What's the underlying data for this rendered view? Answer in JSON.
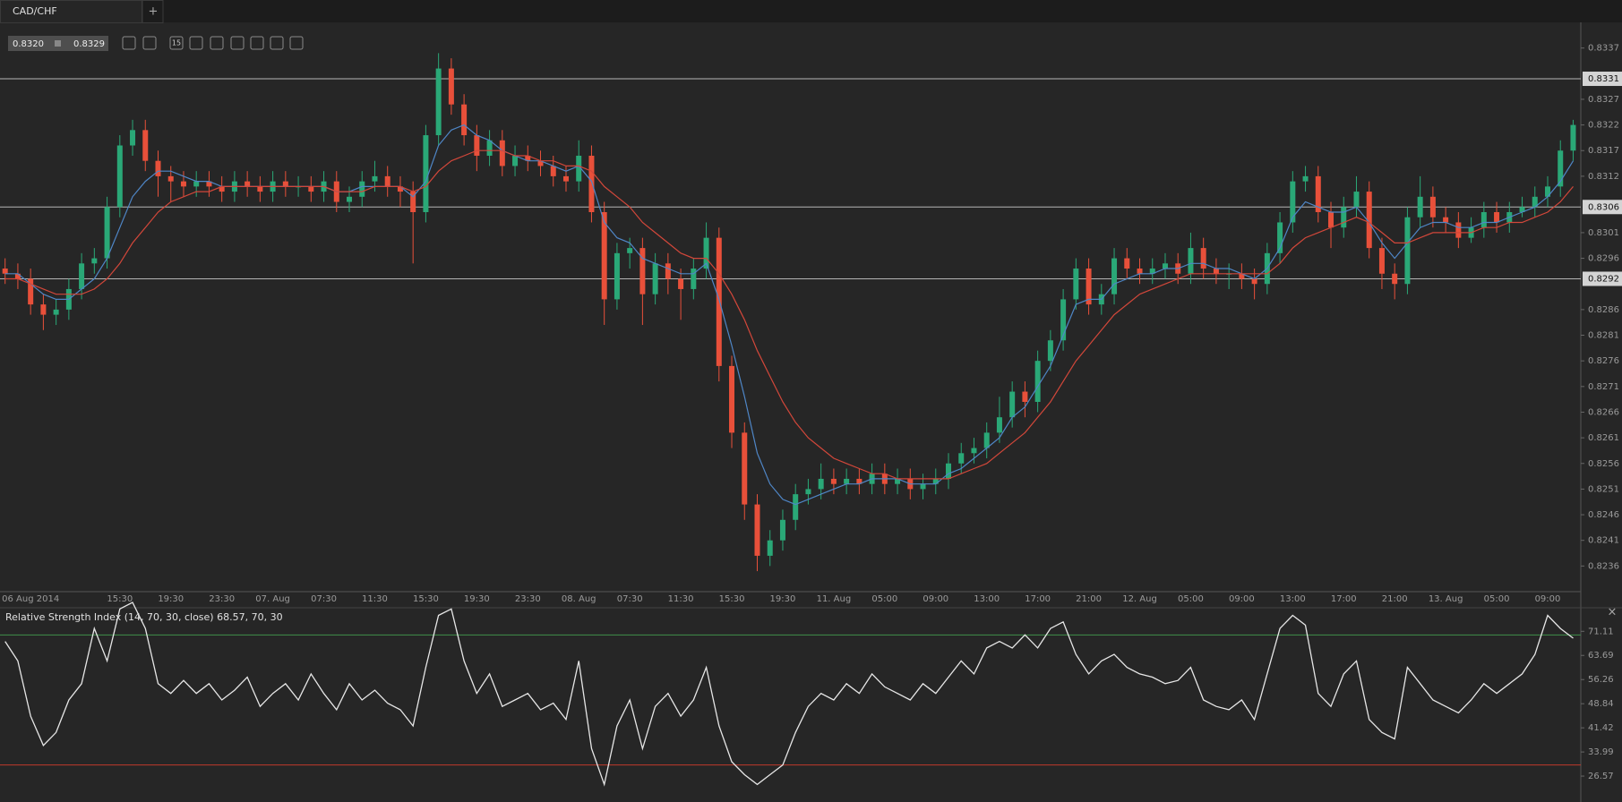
{
  "ui": {
    "tab": "CAD/CHF",
    "new_tab": "+",
    "bid": "0.8320",
    "ask": "0.8329",
    "timeframe": "15",
    "close": "×"
  },
  "chart_data": [
    {
      "type": "candlestick",
      "title": "CAD/CHF",
      "categories": [
        null,
        null,
        "06 Aug 2014",
        null,
        null,
        null,
        null,
        null,
        null,
        "15:30",
        null,
        null,
        null,
        "19:30",
        null,
        null,
        null,
        "23:30",
        null,
        null,
        null,
        "07. Aug",
        null,
        null,
        null,
        "07:30",
        null,
        null,
        null,
        "11:30",
        null,
        null,
        null,
        "15:30",
        null,
        null,
        null,
        "19:30",
        null,
        null,
        null,
        "23:30",
        null,
        null,
        null,
        "08. Aug",
        null,
        null,
        null,
        "07:30",
        null,
        null,
        null,
        "11:30",
        null,
        null,
        null,
        "15:30",
        null,
        null,
        null,
        "19:30",
        null,
        null,
        null,
        "11. Aug",
        null,
        null,
        null,
        "05:00",
        null,
        null,
        null,
        "09:00",
        null,
        null,
        null,
        "13:00",
        null,
        null,
        null,
        "17:00",
        null,
        null,
        null,
        "21:00",
        null,
        null,
        null,
        "12. Aug",
        null,
        null,
        null,
        "05:00",
        null,
        null,
        null,
        "09:00",
        null,
        null,
        null,
        "13:00",
        null,
        null,
        null,
        "17:00",
        null,
        null,
        null,
        "21:00",
        null,
        null,
        null,
        "13. Aug",
        null,
        null,
        null,
        "05:00",
        null,
        null,
        null,
        "09:00",
        null,
        null
      ],
      "open": [
        0.8294,
        0.8293,
        0.8292,
        0.8287,
        0.8285,
        0.8286,
        0.829,
        0.8295,
        0.8296,
        0.8306,
        0.8318,
        0.8321,
        0.8315,
        0.8312,
        0.8311,
        0.831,
        0.8311,
        0.831,
        0.8309,
        0.8311,
        0.831,
        0.8309,
        0.8311,
        0.831,
        0.831,
        0.8309,
        0.8311,
        0.8307,
        0.8308,
        0.8311,
        0.8312,
        0.831,
        0.8309,
        0.8305,
        0.832,
        0.8333,
        0.8326,
        0.832,
        0.8316,
        0.8319,
        0.8314,
        0.8316,
        0.8315,
        0.8314,
        0.8312,
        0.8311,
        0.8316,
        0.8305,
        0.8288,
        0.8297,
        0.8298,
        0.8289,
        0.8295,
        0.8292,
        0.829,
        0.8294,
        0.83,
        0.8275,
        0.8262,
        0.8248,
        0.8238,
        0.8241,
        0.8245,
        0.825,
        0.8251,
        0.8253,
        0.8252,
        0.8253,
        0.8252,
        0.8254,
        0.8252,
        0.8253,
        0.8251,
        0.8252,
        0.8253,
        0.8256,
        0.8258,
        0.8259,
        0.8262,
        0.8265,
        0.827,
        0.8268,
        0.8276,
        0.828,
        0.8288,
        0.8294,
        0.8287,
        0.8289,
        0.8296,
        0.8294,
        0.8293,
        0.8294,
        0.8295,
        0.8293,
        0.8298,
        0.8294,
        0.8293,
        0.8293,
        0.8292,
        0.8291,
        0.8297,
        0.8303,
        0.8311,
        0.8312,
        0.8305,
        0.8302,
        0.8306,
        0.8309,
        0.8298,
        0.8293,
        0.8291,
        0.8304,
        0.8308,
        0.8304,
        0.8303,
        0.83,
        0.8302,
        0.8305,
        0.8303,
        0.8305,
        0.8306,
        0.8308,
        0.831,
        0.8317
      ],
      "high": [
        0.8296,
        0.8295,
        0.8294,
        0.8289,
        0.8288,
        0.8292,
        0.8297,
        0.8298,
        0.8308,
        0.832,
        0.8323,
        0.8323,
        0.8317,
        0.8314,
        0.8313,
        0.8313,
        0.8313,
        0.8312,
        0.8313,
        0.8313,
        0.8312,
        0.8313,
        0.8313,
        0.8312,
        0.8312,
        0.8313,
        0.8313,
        0.831,
        0.8313,
        0.8315,
        0.8314,
        0.8312,
        0.8311,
        0.8322,
        0.8336,
        0.8335,
        0.8328,
        0.8322,
        0.8321,
        0.8321,
        0.8318,
        0.8318,
        0.8317,
        0.8316,
        0.8314,
        0.8319,
        0.8318,
        0.8307,
        0.8299,
        0.83,
        0.83,
        0.8297,
        0.8297,
        0.8294,
        0.8296,
        0.8303,
        0.8302,
        0.8277,
        0.8264,
        0.825,
        0.8243,
        0.8247,
        0.8252,
        0.8253,
        0.8256,
        0.8255,
        0.8255,
        0.8255,
        0.8256,
        0.8256,
        0.8255,
        0.8255,
        0.8254,
        0.8255,
        0.8258,
        0.826,
        0.8261,
        0.8264,
        0.8269,
        0.8272,
        0.8272,
        0.8278,
        0.8282,
        0.829,
        0.8296,
        0.8296,
        0.8291,
        0.8298,
        0.8298,
        0.8296,
        0.8296,
        0.8297,
        0.8297,
        0.8301,
        0.83,
        0.8296,
        0.8295,
        0.8295,
        0.8294,
        0.8299,
        0.8305,
        0.8313,
        0.8314,
        0.8314,
        0.8307,
        0.8308,
        0.8312,
        0.8311,
        0.83,
        0.8295,
        0.8306,
        0.8312,
        0.831,
        0.8306,
        0.8305,
        0.8304,
        0.8307,
        0.8307,
        0.8307,
        0.8308,
        0.831,
        0.8312,
        0.8319,
        0.8323
      ],
      "low": [
        0.8291,
        0.829,
        0.8285,
        0.8282,
        0.8283,
        0.8284,
        0.8288,
        0.8293,
        0.8294,
        0.8304,
        0.8316,
        0.8313,
        0.8308,
        0.8307,
        0.8308,
        0.8308,
        0.8308,
        0.8307,
        0.8307,
        0.8308,
        0.8307,
        0.8307,
        0.8308,
        0.8308,
        0.8307,
        0.8307,
        0.8305,
        0.8305,
        0.8306,
        0.8309,
        0.8308,
        0.8306,
        0.8295,
        0.8303,
        0.8318,
        0.8324,
        0.8318,
        0.8313,
        0.8314,
        0.8312,
        0.8312,
        0.8313,
        0.8312,
        0.831,
        0.8309,
        0.8309,
        0.8303,
        0.8283,
        0.8286,
        0.8294,
        0.8283,
        0.8287,
        0.8289,
        0.8284,
        0.8288,
        0.8292,
        0.8272,
        0.8259,
        0.8245,
        0.8235,
        0.8236,
        0.8239,
        0.8243,
        0.8248,
        0.8249,
        0.825,
        0.825,
        0.825,
        0.825,
        0.825,
        0.825,
        0.8249,
        0.8249,
        0.825,
        0.8251,
        0.8254,
        0.8256,
        0.8257,
        0.826,
        0.8263,
        0.8265,
        0.8266,
        0.8274,
        0.8278,
        0.8286,
        0.8285,
        0.8285,
        0.8287,
        0.8292,
        0.8291,
        0.8291,
        0.8292,
        0.8291,
        0.8291,
        0.8292,
        0.8291,
        0.829,
        0.829,
        0.8288,
        0.8289,
        0.8295,
        0.8301,
        0.8309,
        0.8303,
        0.8298,
        0.83,
        0.8304,
        0.8296,
        0.829,
        0.8288,
        0.8289,
        0.8302,
        0.8302,
        0.8301,
        0.8298,
        0.8299,
        0.83,
        0.8301,
        0.8301,
        0.8304,
        0.8304,
        0.8306,
        0.8308,
        0.8315
      ],
      "close": [
        0.8293,
        0.8292,
        0.8287,
        0.8285,
        0.8286,
        0.829,
        0.8295,
        0.8296,
        0.8306,
        0.8318,
        0.8321,
        0.8315,
        0.8312,
        0.8311,
        0.831,
        0.8311,
        0.831,
        0.8309,
        0.8311,
        0.831,
        0.8309,
        0.8311,
        0.831,
        0.831,
        0.8309,
        0.8311,
        0.8307,
        0.8308,
        0.8311,
        0.8312,
        0.831,
        0.8309,
        0.8305,
        0.832,
        0.8333,
        0.8326,
        0.832,
        0.8316,
        0.8319,
        0.8314,
        0.8316,
        0.8315,
        0.8314,
        0.8312,
        0.8311,
        0.8316,
        0.8305,
        0.8288,
        0.8297,
        0.8298,
        0.8289,
        0.8295,
        0.8292,
        0.829,
        0.8294,
        0.83,
        0.8275,
        0.8262,
        0.8248,
        0.8238,
        0.8241,
        0.8245,
        0.825,
        0.8251,
        0.8253,
        0.8252,
        0.8253,
        0.8252,
        0.8254,
        0.8252,
        0.8253,
        0.8251,
        0.8252,
        0.8253,
        0.8256,
        0.8258,
        0.8259,
        0.8262,
        0.8265,
        0.827,
        0.8268,
        0.8276,
        0.828,
        0.8288,
        0.8294,
        0.8287,
        0.8289,
        0.8296,
        0.8294,
        0.8293,
        0.8294,
        0.8295,
        0.8293,
        0.8298,
        0.8294,
        0.8293,
        0.8293,
        0.8292,
        0.8291,
        0.8297,
        0.8303,
        0.8311,
        0.8312,
        0.8305,
        0.8302,
        0.8306,
        0.8309,
        0.8298,
        0.8293,
        0.8291,
        0.8304,
        0.8308,
        0.8304,
        0.8303,
        0.83,
        0.8302,
        0.8305,
        0.8303,
        0.8305,
        0.8306,
        0.8308,
        0.831,
        0.8317,
        0.8322
      ],
      "up_color": "#2aa877",
      "down_color": "#e8503a",
      "series": [
        {
          "color": "#4f86c6",
          "values": [
            0.8293,
            0.8293,
            0.8291,
            0.8289,
            0.8288,
            0.8288,
            0.829,
            0.8292,
            0.8296,
            0.8302,
            0.8308,
            0.8311,
            0.8313,
            0.8313,
            0.8312,
            0.8311,
            0.8311,
            0.831,
            0.831,
            0.831,
            0.831,
            0.831,
            0.831,
            0.831,
            0.831,
            0.831,
            0.8309,
            0.8309,
            0.831,
            0.831,
            0.831,
            0.831,
            0.8308,
            0.8311,
            0.8318,
            0.8321,
            0.8322,
            0.832,
            0.8319,
            0.8317,
            0.8316,
            0.8315,
            0.8315,
            0.8314,
            0.8313,
            0.8314,
            0.8311,
            0.8303,
            0.83,
            0.8299,
            0.8296,
            0.8295,
            0.8294,
            0.8293,
            0.8293,
            0.8295,
            0.8288,
            0.8279,
            0.8269,
            0.8258,
            0.8252,
            0.8249,
            0.8248,
            0.8249,
            0.825,
            0.8251,
            0.8252,
            0.8252,
            0.8253,
            0.8253,
            0.8253,
            0.8252,
            0.8252,
            0.8252,
            0.8254,
            0.8255,
            0.8257,
            0.8259,
            0.8261,
            0.8265,
            0.8267,
            0.8271,
            0.8275,
            0.8281,
            0.8287,
            0.8288,
            0.8288,
            0.8291,
            0.8292,
            0.8293,
            0.8293,
            0.8294,
            0.8294,
            0.8295,
            0.8295,
            0.8294,
            0.8294,
            0.8293,
            0.8292,
            0.8294,
            0.8298,
            0.8304,
            0.8307,
            0.8306,
            0.8305,
            0.8305,
            0.8306,
            0.8303,
            0.8299,
            0.8296,
            0.8299,
            0.8302,
            0.8303,
            0.8303,
            0.8302,
            0.8302,
            0.8303,
            0.8303,
            0.8304,
            0.8305,
            0.8306,
            0.8308,
            0.8311,
            0.8315
          ]
        },
        {
          "color": "#d2473a",
          "values": [
            0.8292,
            0.8292,
            0.8291,
            0.829,
            0.8289,
            0.8289,
            0.8289,
            0.829,
            0.8292,
            0.8295,
            0.8299,
            0.8302,
            0.8305,
            0.8307,
            0.8308,
            0.8309,
            0.8309,
            0.831,
            0.831,
            0.831,
            0.831,
            0.831,
            0.831,
            0.831,
            0.831,
            0.831,
            0.8309,
            0.8309,
            0.8309,
            0.831,
            0.831,
            0.831,
            0.8309,
            0.831,
            0.8313,
            0.8315,
            0.8316,
            0.8317,
            0.8317,
            0.8317,
            0.8316,
            0.8316,
            0.8315,
            0.8315,
            0.8314,
            0.8314,
            0.8313,
            0.831,
            0.8308,
            0.8306,
            0.8303,
            0.8301,
            0.8299,
            0.8297,
            0.8296,
            0.8296,
            0.8293,
            0.8289,
            0.8284,
            0.8278,
            0.8273,
            0.8268,
            0.8264,
            0.8261,
            0.8259,
            0.8257,
            0.8256,
            0.8255,
            0.8254,
            0.8254,
            0.8253,
            0.8253,
            0.8253,
            0.8253,
            0.8253,
            0.8254,
            0.8255,
            0.8256,
            0.8258,
            0.826,
            0.8262,
            0.8265,
            0.8268,
            0.8272,
            0.8276,
            0.8279,
            0.8282,
            0.8285,
            0.8287,
            0.8289,
            0.829,
            0.8291,
            0.8292,
            0.8293,
            0.8293,
            0.8293,
            0.8293,
            0.8293,
            0.8293,
            0.8293,
            0.8295,
            0.8298,
            0.83,
            0.8301,
            0.8302,
            0.8303,
            0.8304,
            0.8303,
            0.8301,
            0.8299,
            0.8299,
            0.83,
            0.8301,
            0.8301,
            0.8301,
            0.8301,
            0.8302,
            0.8302,
            0.8303,
            0.8303,
            0.8304,
            0.8305,
            0.8307,
            0.831
          ]
        }
      ],
      "levels": [
        0.8331,
        0.8306,
        0.8292
      ],
      "ylim": [
        0.8231,
        0.8342
      ],
      "yticks": [
        0.8337,
        0.8327,
        0.8322,
        0.8317,
        0.8312,
        0.8301,
        0.8296,
        0.8286,
        0.8281,
        0.8276,
        0.8271,
        0.8266,
        0.8261,
        0.8256,
        0.8251,
        0.8246,
        0.8241,
        0.8236
      ]
    },
    {
      "type": "line",
      "title": "Relative Strength Index (14, 70, 30, close) 68.57, 70, 30",
      "color": "#e6e6e6",
      "values": [
        68,
        62,
        45,
        36,
        40,
        50,
        55,
        72,
        62,
        78,
        80,
        72,
        55,
        52,
        56,
        52,
        55,
        50,
        53,
        57,
        48,
        52,
        55,
        50,
        58,
        52,
        47,
        55,
        50,
        53,
        49,
        47,
        42,
        60,
        76,
        78,
        62,
        52,
        58,
        48,
        50,
        52,
        47,
        49,
        44,
        62,
        35,
        24,
        42,
        50,
        35,
        48,
        52,
        45,
        50,
        60,
        42,
        31,
        27,
        24,
        27,
        30,
        40,
        48,
        52,
        50,
        55,
        52,
        58,
        54,
        52,
        50,
        55,
        52,
        57,
        62,
        58,
        66,
        68,
        66,
        70,
        66,
        72,
        74,
        64,
        58,
        62,
        64,
        60,
        58,
        57,
        55,
        56,
        60,
        50,
        48,
        47,
        50,
        44,
        58,
        72,
        76,
        73,
        52,
        48,
        58,
        62,
        44,
        40,
        38,
        60,
        55,
        50,
        48,
        46,
        50,
        55,
        52,
        55,
        58,
        64,
        76,
        72,
        69
      ],
      "levels": [
        70,
        30
      ],
      "level_colors": [
        "#3f8f4a",
        "#c0392b"
      ],
      "ylim": [
        18.6,
        77.8
      ],
      "yticks": [
        71.11,
        63.69,
        56.26,
        48.84,
        41.42,
        33.99,
        26.57
      ]
    }
  ]
}
